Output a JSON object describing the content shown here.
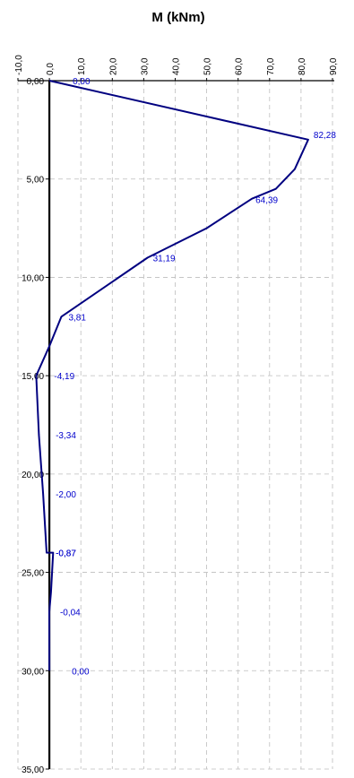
{
  "chart_data": {
    "type": "line",
    "title": "M (kNm)",
    "xlabel": "",
    "ylabel": "",
    "x_axis_position": "top",
    "y_axis_reversed": true,
    "xlim": [
      -10,
      90
    ],
    "ylim": [
      0,
      35
    ],
    "x_ticks": [
      "-10,0",
      "0,0",
      "10,0",
      "20,0",
      "30,0",
      "40,0",
      "50,0",
      "60,0",
      "70,0",
      "80,0",
      "90,0"
    ],
    "y_ticks": [
      "0,00",
      "5,00",
      "10,00",
      "15,00",
      "20,00",
      "25,00",
      "30,00",
      "35,00"
    ],
    "grid": true,
    "legend": "none",
    "line_color": "#000080",
    "label_color": "#0000cc",
    "series": [
      {
        "points": [
          {
            "x": 0.0,
            "y": 0.0
          },
          {
            "x": 82.28,
            "y": 3.0
          },
          {
            "x": 78.0,
            "y": 4.5
          },
          {
            "x": 72.0,
            "y": 5.5
          },
          {
            "x": 64.39,
            "y": 6.0
          },
          {
            "x": 50.0,
            "y": 7.5
          },
          {
            "x": 31.19,
            "y": 9.0
          },
          {
            "x": 3.81,
            "y": 12.0
          },
          {
            "x": 0.0,
            "y": 13.5
          },
          {
            "x": -4.19,
            "y": 15.0
          },
          {
            "x": -3.34,
            "y": 18.0
          },
          {
            "x": -2.0,
            "y": 21.0
          },
          {
            "x": -0.87,
            "y": 24.0
          },
          {
            "x": 1.2,
            "y": 24.0
          },
          {
            "x": 0.5,
            "y": 26.0
          },
          {
            "x": -0.04,
            "y": 27.0
          },
          {
            "x": 0.0,
            "y": 30.0
          }
        ]
      }
    ],
    "data_labels": [
      {
        "text": "0,00",
        "x": 0.0,
        "y": 0.0
      },
      {
        "text": "82,28",
        "x": 82.28,
        "y": 3.0
      },
      {
        "text": "64,39",
        "x": 64.39,
        "y": 6.0
      },
      {
        "text": "31,19",
        "x": 31.19,
        "y": 9.0
      },
      {
        "text": "3,81",
        "x": 3.81,
        "y": 12.0
      },
      {
        "text": "-4,19",
        "x": -4.19,
        "y": 15.0
      },
      {
        "text": "-3,34",
        "x": -3.34,
        "y": 18.0
      },
      {
        "text": "-2,00",
        "x": -2.0,
        "y": 21.0
      },
      {
        "text": "-0,87",
        "x": -0.87,
        "y": 24.0
      },
      {
        "text": "-0,87",
        "x": -0.87,
        "y": 24.0
      },
      {
        "text": "-0,04",
        "x": -0.04,
        "y": 27.0
      },
      {
        "text": "0,00",
        "x": 0.0,
        "y": 30.0
      }
    ]
  }
}
